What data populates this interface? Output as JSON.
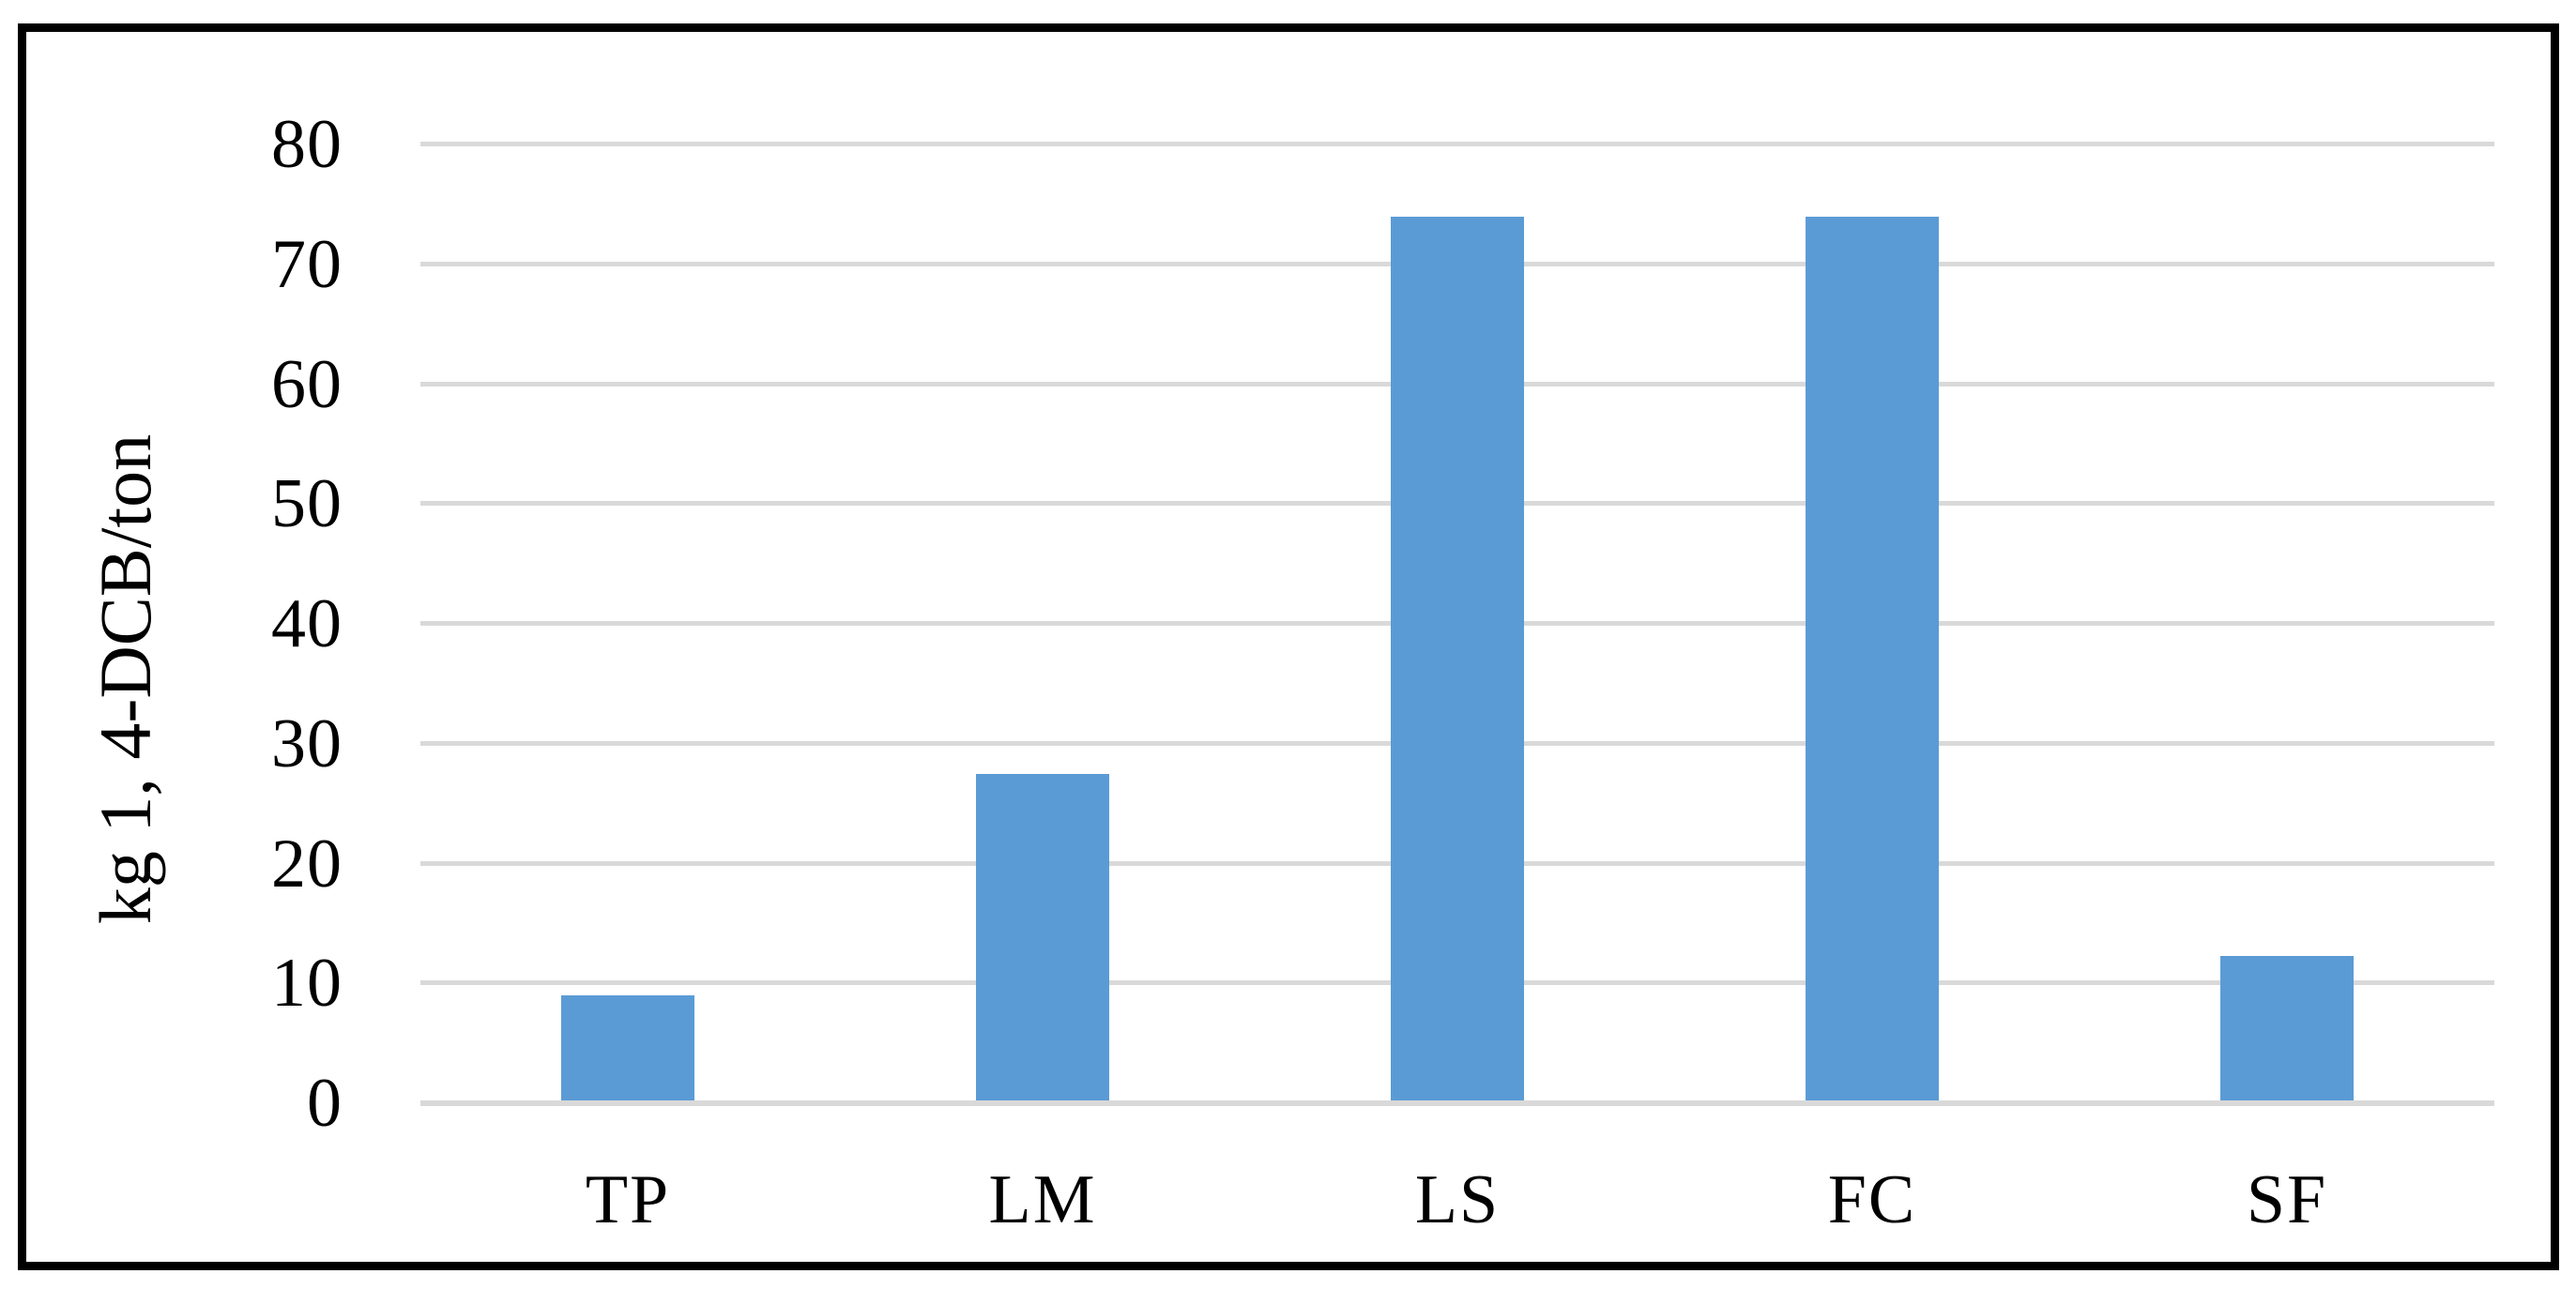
{
  "figure": {
    "background": "#FFFFFF",
    "border_color": "#000000"
  },
  "chart_data": {
    "type": "bar",
    "title": "",
    "categories": [
      "TP",
      "LM",
      "LS",
      "FC",
      "SF"
    ],
    "values": [
      9,
      27.5,
      74,
      74,
      12.3
    ],
    "xlabel": "",
    "ylabel": "kg 1, 4-DCB/ton",
    "ylim": [
      0,
      80
    ],
    "ytick_step": 10,
    "ytick_labels": [
      "0",
      "10",
      "20",
      "30",
      "40",
      "50",
      "60",
      "70",
      "80"
    ],
    "grid": "horizontal",
    "legend": "none",
    "bar_color": "#5B9BD5",
    "gridline_color": "#D9D9D9",
    "text_color": "#000000"
  }
}
